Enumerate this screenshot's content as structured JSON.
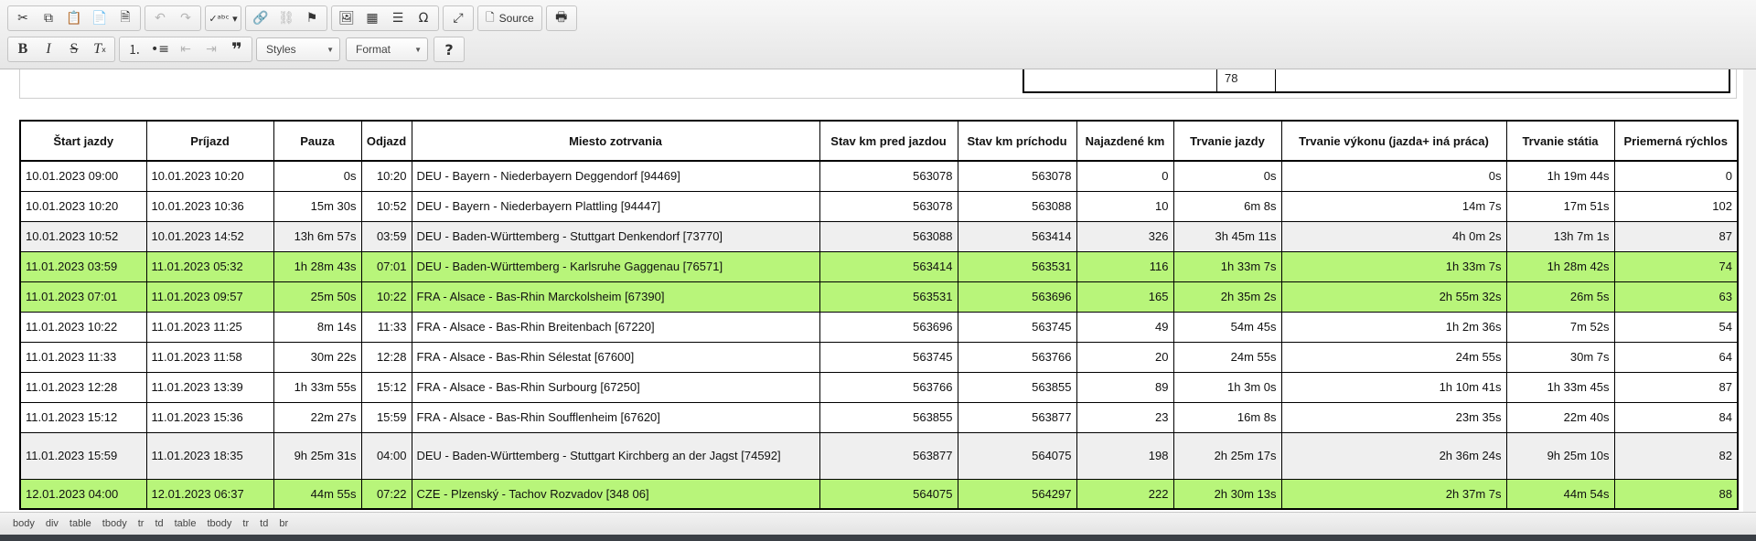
{
  "toolbar": {
    "source_label": "Source",
    "styles_label": "Styles",
    "format_label": "Format",
    "help_label": "?"
  },
  "fragment": {
    "cell_value": "78"
  },
  "table": {
    "headers": [
      "Štart jazdy",
      "Príjazd",
      "Pauza",
      "Odjazd",
      "Miesto zotrvania",
      "Stav km pred jazdou",
      "Stav km príchodu",
      "Najazdené km",
      "Trvanie jazdy",
      "Trvanie výkonu (jazda+ iná práca)",
      "Trvanie státia",
      "Priemerná rýchlos"
    ],
    "rows": [
      {
        "style": "white",
        "cells": [
          "10.01.2023 09:00",
          "10.01.2023 10:20",
          "0s",
          "10:20",
          "DEU - Bayern - Niederbayern Deggendorf [94469]",
          "563078",
          "563078",
          "0",
          "0s",
          "0s",
          "1h 19m 44s",
          "0"
        ]
      },
      {
        "style": "white",
        "cells": [
          "10.01.2023 10:20",
          "10.01.2023 10:36",
          "15m 30s",
          "10:52",
          "DEU - Bayern - Niederbayern Plattling [94447]",
          "563078",
          "563088",
          "10",
          "6m 8s",
          "14m 7s",
          "17m 51s",
          "102"
        ]
      },
      {
        "style": "grey",
        "cells": [
          "10.01.2023 10:52",
          "10.01.2023 14:52",
          "13h 6m 57s",
          "03:59",
          "DEU - Baden-Württemberg - Stuttgart Denkendorf [73770]",
          "563088",
          "563414",
          "326",
          "3h 45m 11s",
          "4h 0m 2s",
          "13h 7m 1s",
          "87"
        ]
      },
      {
        "style": "green",
        "cells": [
          "11.01.2023 03:59",
          "11.01.2023 05:32",
          "1h 28m 43s",
          "07:01",
          "DEU - Baden-Württemberg - Karlsruhe Gaggenau [76571]",
          "563414",
          "563531",
          "116",
          "1h 33m 7s",
          "1h 33m 7s",
          "1h 28m 42s",
          "74"
        ]
      },
      {
        "style": "green",
        "cells": [
          "11.01.2023 07:01",
          "11.01.2023 09:57",
          "25m 50s",
          "10:22",
          "FRA - Alsace - Bas-Rhin Marckolsheim [67390]",
          "563531",
          "563696",
          "165",
          "2h 35m 2s",
          "2h 55m 32s",
          "26m 5s",
          "63"
        ]
      },
      {
        "style": "white",
        "cells": [
          "11.01.2023 10:22",
          "11.01.2023 11:25",
          "8m 14s",
          "11:33",
          "FRA - Alsace - Bas-Rhin Breitenbach [67220]",
          "563696",
          "563745",
          "49",
          "54m 45s",
          "1h 2m 36s",
          "7m 52s",
          "54"
        ]
      },
      {
        "style": "white",
        "cells": [
          "11.01.2023 11:33",
          "11.01.2023 11:58",
          "30m 22s",
          "12:28",
          "FRA - Alsace - Bas-Rhin Sélestat [67600]",
          "563745",
          "563766",
          "20",
          "24m 55s",
          "24m 55s",
          "30m 7s",
          "64"
        ]
      },
      {
        "style": "white",
        "cells": [
          "11.01.2023 12:28",
          "11.01.2023 13:39",
          "1h 33m 55s",
          "15:12",
          "FRA - Alsace - Bas-Rhin Surbourg [67250]",
          "563766",
          "563855",
          "89",
          "1h 3m 0s",
          "1h 10m 41s",
          "1h 33m 45s",
          "87"
        ]
      },
      {
        "style": "white",
        "cells": [
          "11.01.2023 15:12",
          "11.01.2023 15:36",
          "22m 27s",
          "15:59",
          "FRA - Alsace - Bas-Rhin Soufflenheim [67620]",
          "563855",
          "563877",
          "23",
          "16m 8s",
          "23m 35s",
          "22m 40s",
          "84"
        ]
      },
      {
        "style": "grey",
        "tall": true,
        "cells": [
          "11.01.2023 15:59",
          "11.01.2023 18:35",
          "9h 25m 31s",
          "04:00",
          "DEU - Baden-Württemberg - Stuttgart Kirchberg an der Jagst [74592]",
          "563877",
          "564075",
          "198",
          "2h 25m 17s",
          "2h 36m 24s",
          "9h 25m 10s",
          "82"
        ]
      },
      {
        "style": "green",
        "cells": [
          "12.01.2023 04:00",
          "12.01.2023 06:37",
          "44m 55s",
          "07:22",
          "CZE - Plzenský - Tachov Rozvadov [348 06]",
          "564075",
          "564297",
          "222",
          "2h 30m 13s",
          "2h 37m 7s",
          "44m 54s",
          "88"
        ]
      }
    ]
  },
  "statusbar": {
    "path": [
      "body",
      "div",
      "table",
      "tbody",
      "tr",
      "td",
      "table",
      "tbody",
      "tr",
      "td",
      "br"
    ]
  }
}
